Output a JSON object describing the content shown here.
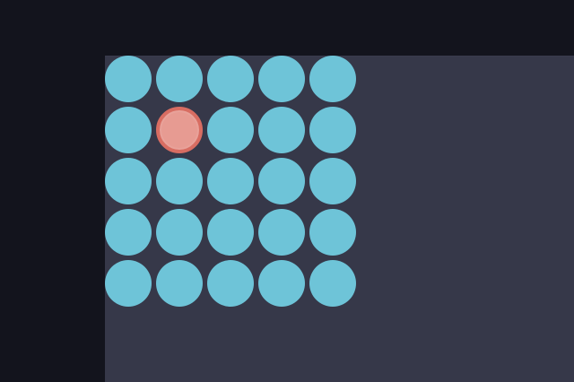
{
  "app": {
    "title": ""
  },
  "game": {
    "rows": 5,
    "columns": 5,
    "selected": {
      "row": 2,
      "column": 2
    },
    "colors": {
      "background": "#13141d",
      "board": "#363849",
      "tile": "#6ec4d8",
      "selected_tile": "#e79b92",
      "selected_border": "#d86d62"
    }
  }
}
